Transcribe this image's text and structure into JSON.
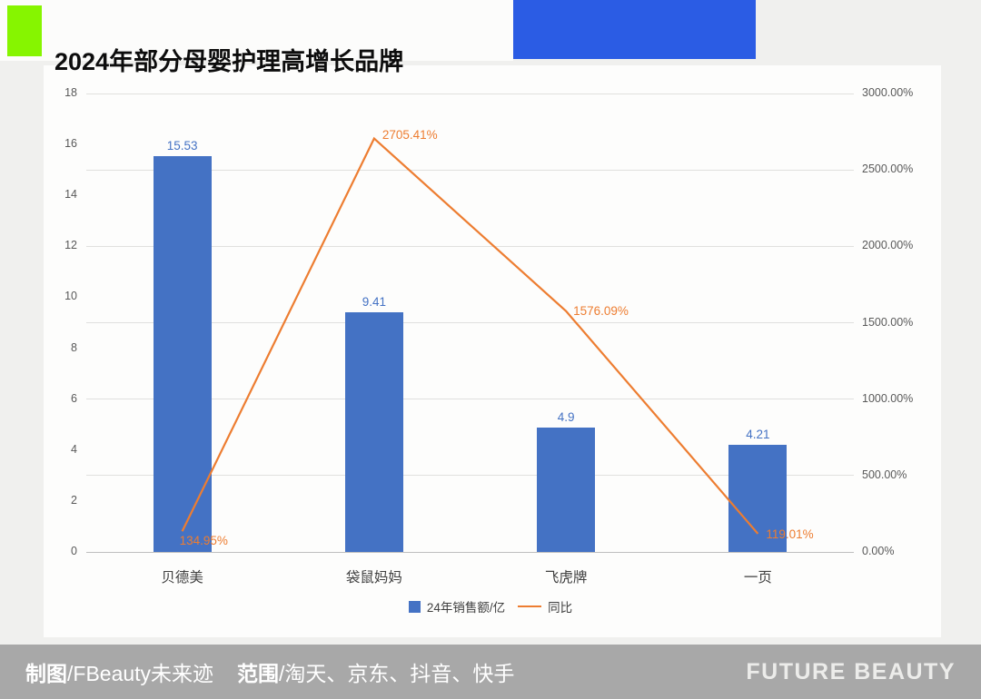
{
  "header": {
    "title": "2024年部分母婴护理高增长品牌"
  },
  "accent_colors": {
    "green_block": "#86f500",
    "blue_block": "#2b5ce4"
  },
  "chart_data": {
    "type": "bar",
    "subtype": "combo-bar-line",
    "title": "2024年部分母婴护理高增长品牌",
    "categories": [
      "贝德美",
      "袋鼠妈妈",
      "飞虎牌",
      "一页"
    ],
    "series": [
      {
        "name": "24年销售额/亿",
        "type": "bar",
        "axis": "left",
        "color": "#4472c4",
        "values": [
          15.53,
          9.41,
          4.9,
          4.21
        ],
        "labels": [
          "15.53",
          "9.41",
          "4.9",
          "4.21"
        ]
      },
      {
        "name": "同比",
        "type": "line",
        "axis": "right",
        "color": "#ed7d31",
        "values": [
          134.95,
          2705.41,
          1576.09,
          119.01
        ],
        "labels": [
          "134.95%",
          "2705.41%",
          "1576.09%",
          "119.01%"
        ]
      }
    ],
    "left_axis": {
      "min": 0,
      "max": 18,
      "ticks": [
        "0",
        "2",
        "4",
        "6",
        "8",
        "10",
        "12",
        "14",
        "16",
        "18"
      ]
    },
    "right_axis": {
      "min": 0,
      "max": 3000,
      "ticks": [
        "0.00%",
        "500.00%",
        "1000.00%",
        "1500.00%",
        "2000.00%",
        "2500.00%",
        "3000.00%"
      ]
    },
    "grid": true,
    "legend_position": "bottom"
  },
  "footer": {
    "credit_label": "制图",
    "credit_value": "/FBeauty未来迹",
    "scope_label": "范围",
    "scope_value": "/淘天、京东、抖音、快手",
    "brand": "FUTURE BEAUTY"
  }
}
